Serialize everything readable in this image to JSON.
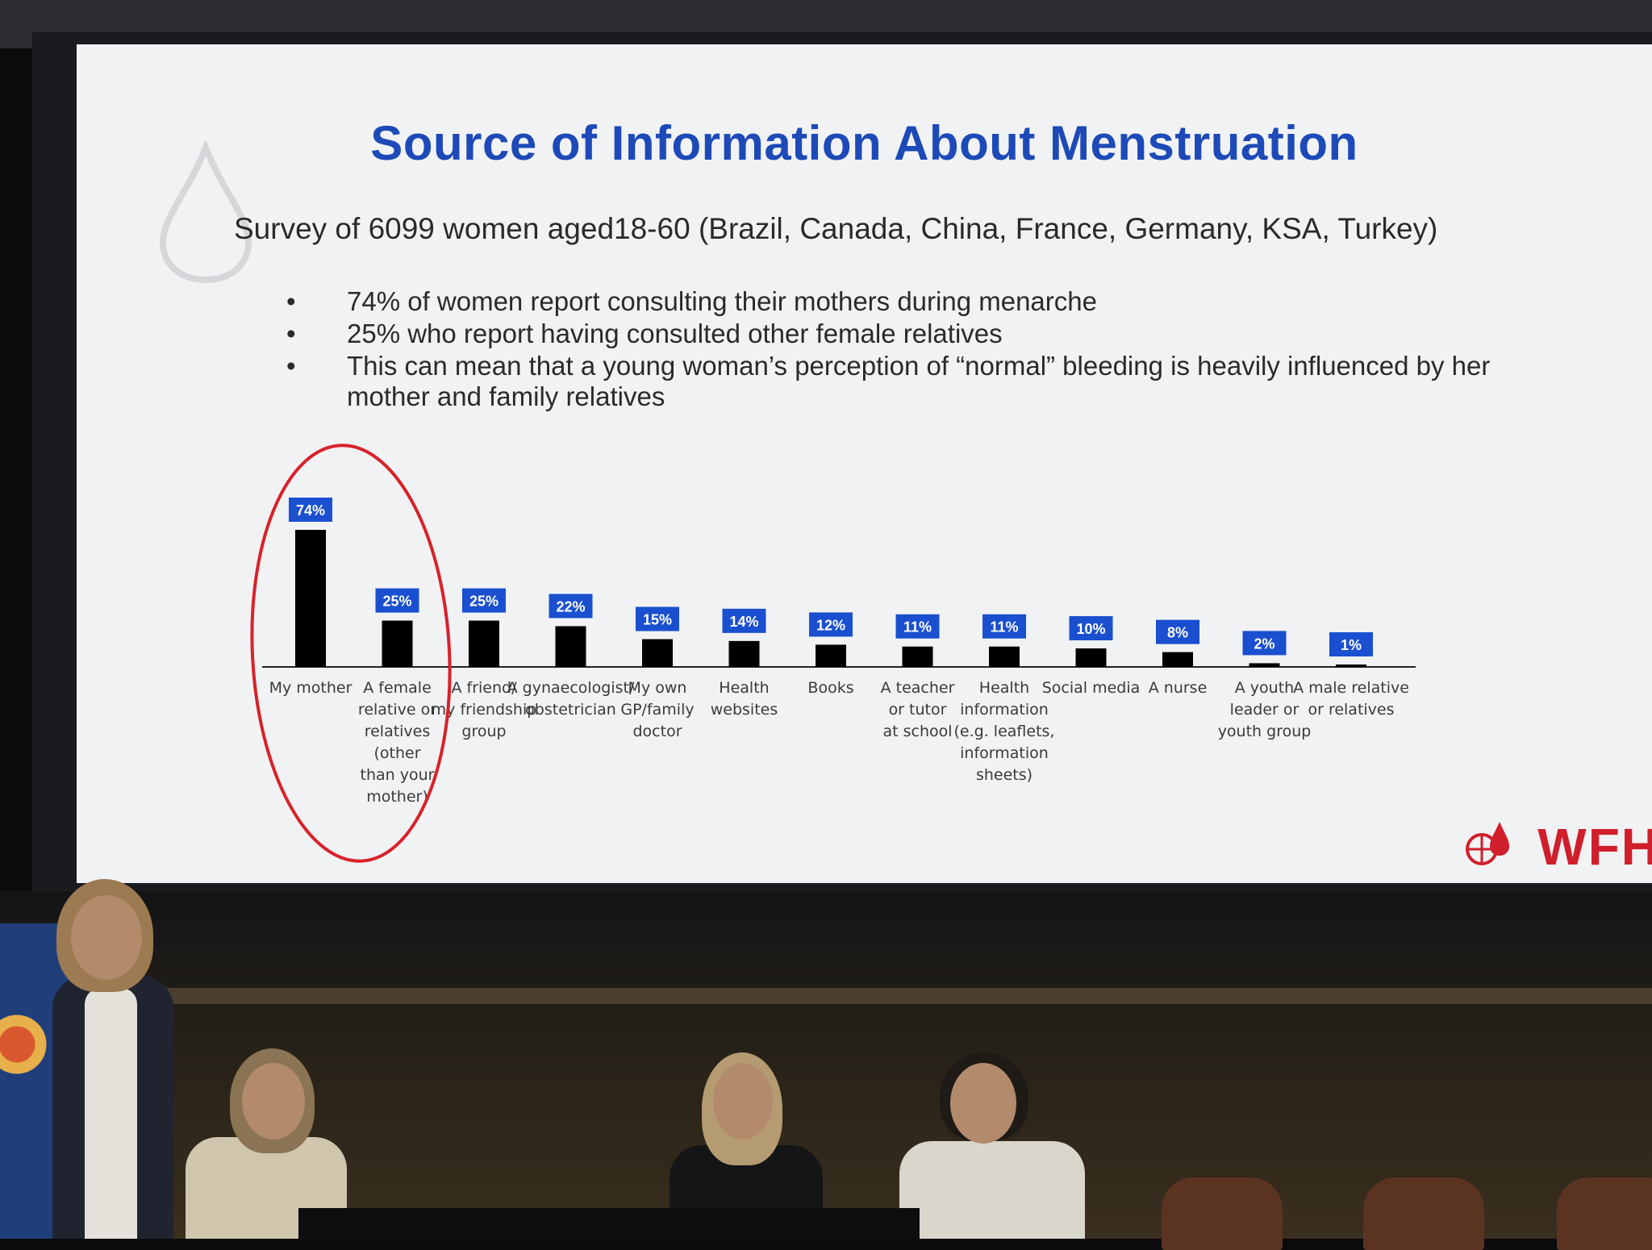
{
  "slide": {
    "title": "Source of Information About Menstruation",
    "subtitle": "Survey of 6099 women aged18-60 (Brazil, Canada, China, France, Germany, KSA, Turkey)",
    "bullets": [
      "74% of women report consulting their mothers during menarche",
      "25% who report having consulted other female relatives",
      "This can mean that a young woman’s perception of “normal” bleeding is heavily influenced by her mother and family relatives"
    ],
    "bullet_symbol": "•",
    "logo_text": "WFH"
  },
  "colors": {
    "title": "#1d4ab8",
    "bar": "#000000",
    "label_box": "#1a4fd0",
    "highlight_ellipse": "#d8222a",
    "logo": "#d01f2b"
  },
  "chart_data": {
    "type": "bar",
    "title": "",
    "xlabel": "",
    "ylabel": "",
    "ylim": [
      0,
      74
    ],
    "grid": false,
    "legend": "none",
    "categories": [
      "My mother",
      "A female relative or relatives (other than your mother)",
      "A friend/ my friendship group",
      "A gynaecologist/ obstetrician",
      "My own GP/family doctor",
      "Health websites",
      "Books",
      "A teacher or tutor at school",
      "Health information (e.g. leaflets, information sheets)",
      "Social media",
      "A nurse",
      "A youth leader or youth group",
      "A male relative or relatives"
    ],
    "category_lines": [
      [
        "My mother"
      ],
      [
        "A female",
        "relative or",
        "relatives",
        "(other",
        "than your",
        "mother)"
      ],
      [
        "A friend/",
        "my friendship",
        "group"
      ],
      [
        "A gynaecologist/",
        "obstetrician"
      ],
      [
        "My own",
        "GP/family",
        "doctor"
      ],
      [
        "Health",
        "websites"
      ],
      [
        "Books"
      ],
      [
        "A teacher",
        "or tutor",
        "at school"
      ],
      [
        "Health",
        "information",
        "(e.g. leaflets,",
        "information",
        "sheets)"
      ],
      [
        "Social media"
      ],
      [
        "A nurse"
      ],
      [
        "A youth",
        "leader or",
        "youth group"
      ],
      [
        "A male relative",
        "or relatives"
      ]
    ],
    "values": [
      74,
      25,
      25,
      22,
      15,
      14,
      12,
      11,
      11,
      10,
      8,
      2,
      1
    ],
    "value_labels": [
      "74%",
      "25%",
      "25%",
      "22%",
      "15%",
      "14%",
      "12%",
      "11%",
      "11%",
      "10%",
      "8%",
      "2%",
      "1%"
    ],
    "highlighted_categories": [
      "My mother",
      "A female relative or relatives (other than your mother)"
    ]
  }
}
